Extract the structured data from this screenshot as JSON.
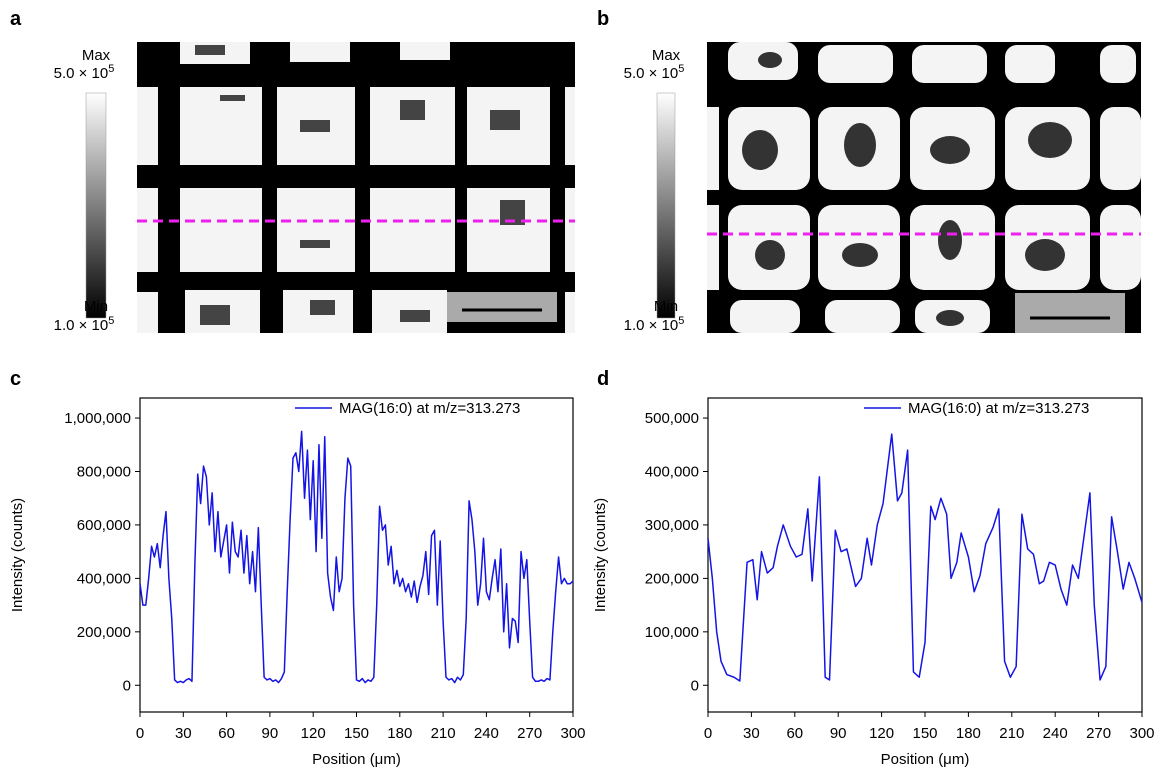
{
  "panels": [
    {
      "label": "a",
      "max_text": "Max",
      "max_value": "5.0 × 10",
      "max_exponent": "5",
      "min_text": "Min",
      "min_value": "1.0 × 10",
      "min_exponent": "5"
    },
    {
      "label": "b",
      "max_text": "Max",
      "max_value": "5.0 × 10",
      "max_exponent": "5",
      "min_text": "Min",
      "min_value": "1.0 × 10",
      "min_exponent": "5"
    }
  ],
  "chart_data": [
    {
      "type": "line",
      "panel_label": "c",
      "x_label": "Position (μm)",
      "y_label": "Intensity (counts)",
      "legend": "upper right",
      "xlim": [
        0,
        300
      ],
      "xticks": [
        0,
        30,
        60,
        90,
        120,
        150,
        180,
        210,
        240,
        270,
        300
      ],
      "ylim": [
        -100000,
        1075000
      ],
      "yticks": [
        0,
        {
          "value": 200000,
          "label": "200,000"
        },
        {
          "value": 400000,
          "label": "400,000"
        },
        {
          "value": 600000,
          "label": "600,000"
        },
        {
          "value": 800000,
          "label": "800,000"
        },
        {
          "value": 1000000,
          "label": "1,000,000"
        }
      ],
      "x": [
        0,
        2,
        4,
        6,
        8,
        10,
        12,
        14,
        16,
        18,
        20,
        22,
        24,
        26,
        28,
        30,
        32,
        34,
        36,
        38,
        40,
        42,
        44,
        46,
        48,
        50,
        52,
        54,
        56,
        58,
        60,
        62,
        64,
        66,
        68,
        70,
        72,
        74,
        76,
        78,
        80,
        82,
        84,
        86,
        88,
        90,
        92,
        94,
        96,
        98,
        100,
        102,
        104,
        106,
        108,
        110,
        112,
        114,
        116,
        118,
        120,
        122,
        124,
        126,
        128,
        130,
        132,
        134,
        136,
        138,
        140,
        142,
        144,
        146,
        148,
        150,
        152,
        154,
        156,
        158,
        160,
        162,
        164,
        166,
        168,
        170,
        172,
        174,
        176,
        178,
        180,
        182,
        184,
        186,
        188,
        190,
        192,
        194,
        196,
        198,
        200,
        202,
        204,
        206,
        208,
        210,
        212,
        214,
        216,
        218,
        220,
        222,
        224,
        226,
        228,
        230,
        232,
        234,
        236,
        238,
        240,
        242,
        244,
        246,
        248,
        250,
        252,
        254,
        256,
        258,
        260,
        262,
        264,
        266,
        268,
        270,
        272,
        274,
        276,
        278,
        280,
        282,
        284,
        286,
        288,
        290,
        292,
        294,
        296,
        298,
        300
      ],
      "series": [
        {
          "name": "MAG(16:0) at m/z=313.273",
          "color": "#1414e6",
          "values": [
            380000,
            300000,
            300000,
            400000,
            520000,
            480000,
            530000,
            440000,
            560000,
            650000,
            400000,
            250000,
            20000,
            10000,
            15000,
            10000,
            20000,
            25000,
            15000,
            450000,
            790000,
            680000,
            820000,
            780000,
            600000,
            720000,
            500000,
            650000,
            480000,
            540000,
            600000,
            420000,
            610000,
            500000,
            480000,
            580000,
            420000,
            560000,
            380000,
            500000,
            350000,
            590000,
            300000,
            30000,
            20000,
            25000,
            15000,
            20000,
            10000,
            25000,
            50000,
            350000,
            620000,
            850000,
            870000,
            800000,
            950000,
            700000,
            880000,
            620000,
            840000,
            500000,
            900000,
            550000,
            930000,
            420000,
            330000,
            280000,
            480000,
            350000,
            400000,
            700000,
            850000,
            820000,
            300000,
            20000,
            15000,
            25000,
            10000,
            20000,
            15000,
            30000,
            300000,
            670000,
            580000,
            600000,
            450000,
            520000,
            380000,
            430000,
            370000,
            400000,
            350000,
            380000,
            330000,
            390000,
            310000,
            370000,
            410000,
            500000,
            340000,
            560000,
            580000,
            300000,
            540000,
            240000,
            30000,
            20000,
            25000,
            10000,
            30000,
            20000,
            40000,
            250000,
            690000,
            620000,
            500000,
            300000,
            380000,
            550000,
            350000,
            320000,
            400000,
            470000,
            350000,
            510000,
            200000,
            380000,
            140000,
            250000,
            240000,
            160000,
            500000,
            400000,
            470000,
            240000,
            30000,
            15000,
            15000,
            20000,
            15000,
            25000,
            20000,
            200000,
            350000,
            480000,
            380000,
            400000,
            380000,
            380000,
            390000
          ]
        }
      ]
    },
    {
      "type": "line",
      "panel_label": "d",
      "x_label": "Position (μm)",
      "y_label": "Intensity (counts)",
      "legend": "upper right",
      "xlim": [
        0,
        300
      ],
      "xticks": [
        0,
        30,
        60,
        90,
        120,
        150,
        180,
        210,
        240,
        270,
        300
      ],
      "ylim": [
        -50000,
        537500
      ],
      "yticks": [
        0,
        {
          "value": 100000,
          "label": "100,000"
        },
        {
          "value": 200000,
          "label": "200,000"
        },
        {
          "value": 300000,
          "label": "300,000"
        },
        {
          "value": 400000,
          "label": "400,000"
        },
        {
          "value": 500000,
          "label": "500,000"
        }
      ],
      "x": [
        0,
        3,
        6,
        9,
        13,
        18,
        22,
        27,
        31,
        34,
        37,
        41,
        45,
        48,
        52,
        57,
        61,
        65,
        69,
        72,
        77,
        81,
        84,
        88,
        92,
        96,
        99,
        102,
        106,
        110,
        113,
        117,
        121,
        127,
        131,
        134,
        138,
        142,
        146,
        150,
        154,
        157,
        161,
        165,
        168,
        172,
        175,
        180,
        184,
        188,
        192,
        197,
        201,
        205,
        209,
        213,
        217,
        221,
        225,
        229,
        232,
        236,
        240,
        244,
        248,
        252,
        256,
        261,
        264,
        267,
        271,
        275,
        279,
        283,
        287,
        291,
        295,
        300
      ],
      "series": [
        {
          "name": "MAG(16:0) at m/z=313.273",
          "color": "#1414e6",
          "values": [
            275000,
            200000,
            100000,
            45000,
            20000,
            15000,
            8000,
            230000,
            235000,
            160000,
            250000,
            210000,
            220000,
            260000,
            300000,
            260000,
            240000,
            245000,
            330000,
            195000,
            390000,
            15000,
            10000,
            290000,
            250000,
            255000,
            220000,
            185000,
            200000,
            275000,
            225000,
            300000,
            340000,
            470000,
            345000,
            360000,
            440000,
            25000,
            15000,
            80000,
            335000,
            310000,
            350000,
            320000,
            200000,
            230000,
            285000,
            240000,
            175000,
            205000,
            265000,
            295000,
            330000,
            45000,
            15000,
            35000,
            320000,
            255000,
            245000,
            190000,
            195000,
            230000,
            225000,
            180000,
            150000,
            225000,
            200000,
            300000,
            360000,
            150000,
            10000,
            35000,
            315000,
            250000,
            180000,
            230000,
            200000,
            155000
          ]
        }
      ]
    }
  ]
}
